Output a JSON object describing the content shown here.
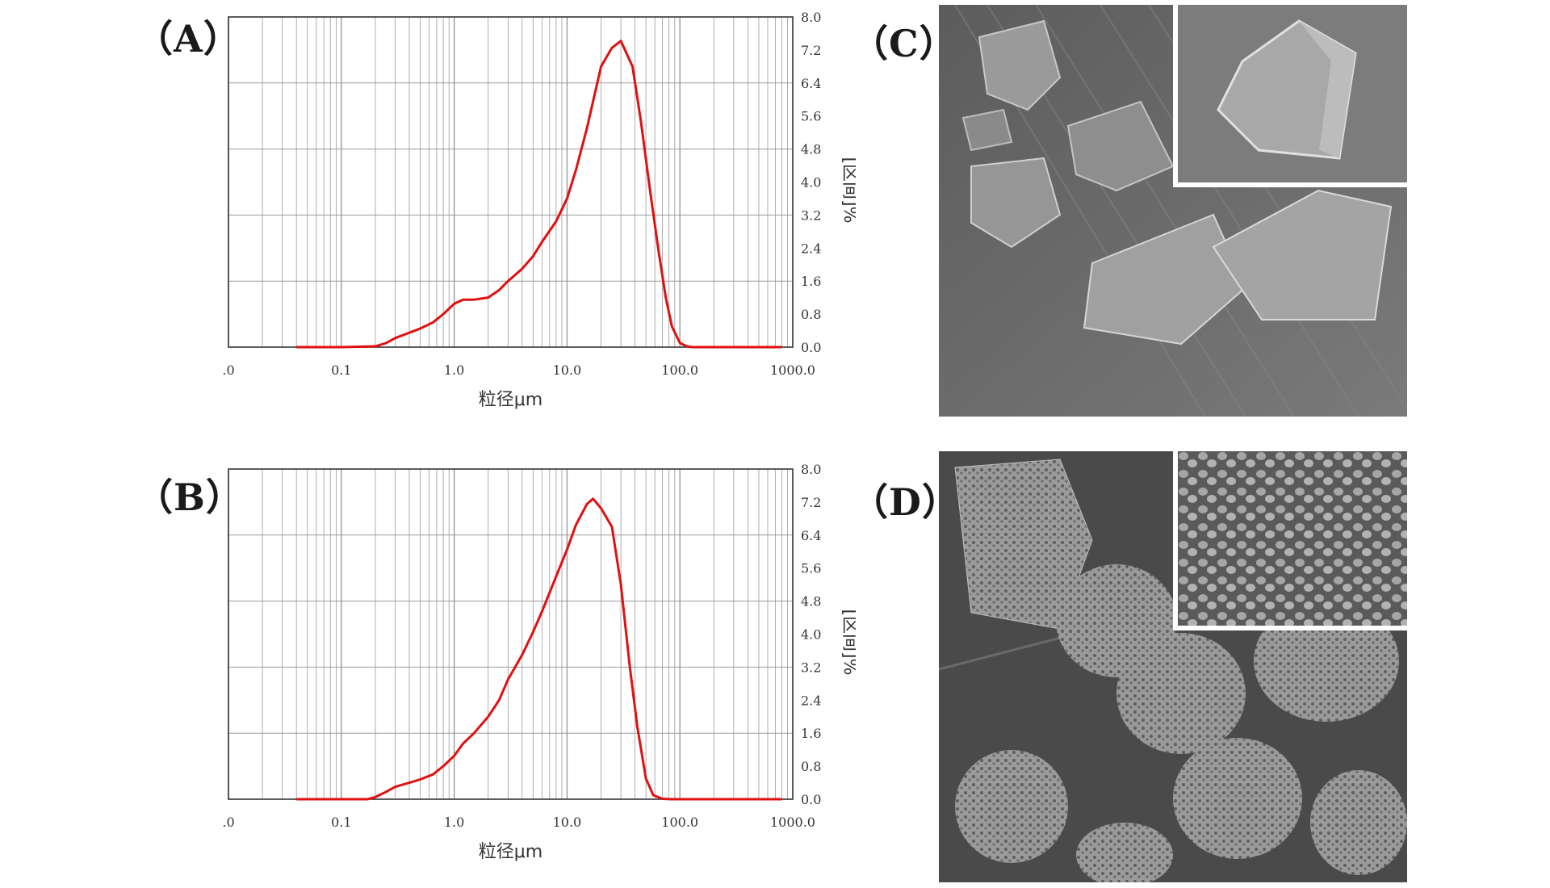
{
  "panels": {
    "a": "（A）",
    "b": "（B）",
    "c": "（C）",
    "d": "（D）"
  },
  "colors": {
    "curve": "#e01010",
    "grid": "#9a9a9a",
    "axis": "#333333"
  },
  "chart_data": [
    {
      "type": "line",
      "panel": "A",
      "xscale": "log",
      "xlim": [
        0.01,
        1000
      ],
      "ylim": [
        0,
        8
      ],
      "xticks": [
        ".0",
        "0.1",
        "1.0",
        "10.0",
        "100.0",
        "1000.0"
      ],
      "yticks": [
        "0.0",
        "0.8",
        "1.6",
        "2.4",
        "3.2",
        "4.0",
        "4.8",
        "5.6",
        "6.4",
        "7.2",
        "8.0"
      ],
      "xlabel": "粒径μm",
      "ylabel": "[区间]%",
      "grid": true,
      "x": [
        0.04,
        0.1,
        0.2,
        0.25,
        0.3,
        0.4,
        0.5,
        0.65,
        0.8,
        1.0,
        1.2,
        1.5,
        2.0,
        2.5,
        3.0,
        4.0,
        5.0,
        6.0,
        8.0,
        10.0,
        12.0,
        15.0,
        20.0,
        25.0,
        30.0,
        38.0,
        45.0,
        55.0,
        65.0,
        75.0,
        85.0,
        100.0,
        115.0,
        130.0,
        200.0,
        500.0,
        800.0
      ],
      "y": [
        0.0,
        0.0,
        0.02,
        0.1,
        0.22,
        0.35,
        0.45,
        0.6,
        0.8,
        1.05,
        1.15,
        1.15,
        1.2,
        1.38,
        1.6,
        1.9,
        2.2,
        2.55,
        3.05,
        3.6,
        4.3,
        5.3,
        6.8,
        7.25,
        7.42,
        6.8,
        5.5,
        3.7,
        2.3,
        1.2,
        0.5,
        0.1,
        0.02,
        0.0,
        0.0,
        0.0,
        0.0
      ]
    },
    {
      "type": "line",
      "panel": "B",
      "xscale": "log",
      "xlim": [
        0.01,
        1000
      ],
      "ylim": [
        0,
        8
      ],
      "xticks": [
        ".0",
        "0.1",
        "1.0",
        "10.0",
        "100.0",
        "1000.0"
      ],
      "yticks": [
        "0.0",
        "0.8",
        "1.6",
        "2.4",
        "3.2",
        "4.0",
        "4.8",
        "5.6",
        "6.4",
        "7.2",
        "8.0"
      ],
      "xlabel": "粒径μm",
      "ylabel": "[区间]%",
      "grid": true,
      "x": [
        0.04,
        0.1,
        0.17,
        0.2,
        0.25,
        0.3,
        0.4,
        0.5,
        0.65,
        0.8,
        1.0,
        1.2,
        1.5,
        2.0,
        2.5,
        3.0,
        4.0,
        5.0,
        6.0,
        8.0,
        10.0,
        12.0,
        15.0,
        17.0,
        20.0,
        25.0,
        30.0,
        36.0,
        42.0,
        50.0,
        58.0,
        70.0,
        85.0,
        200.0,
        500.0,
        800.0
      ],
      "y": [
        0.0,
        0.0,
        0.0,
        0.05,
        0.18,
        0.3,
        0.4,
        0.48,
        0.6,
        0.8,
        1.05,
        1.35,
        1.6,
        2.0,
        2.4,
        2.9,
        3.5,
        4.05,
        4.55,
        5.4,
        6.05,
        6.65,
        7.15,
        7.28,
        7.05,
        6.6,
        5.2,
        3.2,
        1.75,
        0.5,
        0.1,
        0.01,
        0.0,
        0.0,
        0.0,
        0.0
      ]
    }
  ]
}
